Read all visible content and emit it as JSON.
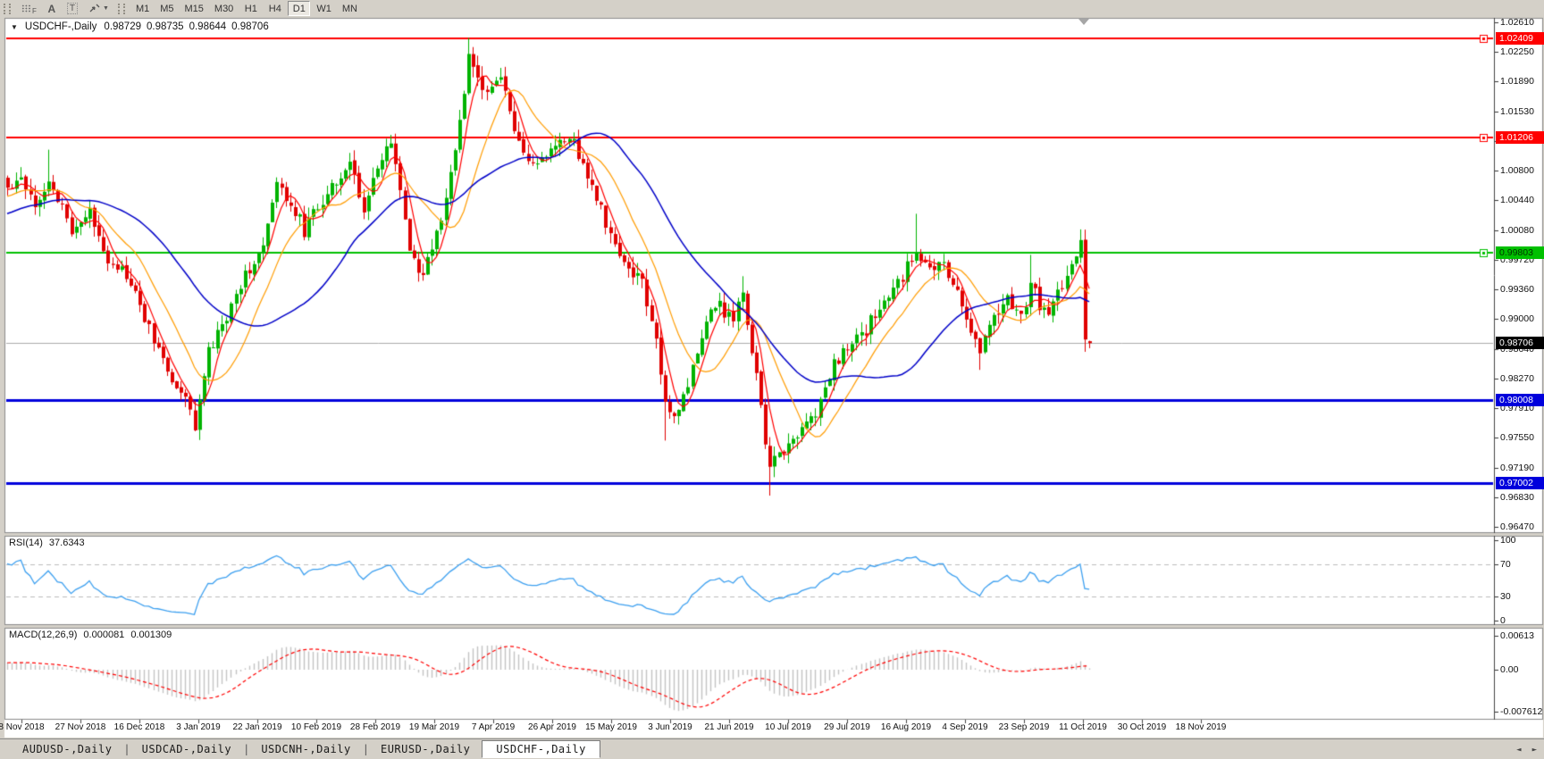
{
  "app": {
    "toolbar": {
      "grid_icon_label": "F",
      "font_icon_label": "A",
      "text_icon_label": "T",
      "timeframes": [
        "M1",
        "M5",
        "M15",
        "M30",
        "H1",
        "H4",
        "D1",
        "W1",
        "MN"
      ],
      "active_timeframe": "D1"
    },
    "tabs": {
      "items": [
        "AUDUSD-,Daily",
        "USDCAD-,Daily",
        "USDCNH-,Daily",
        "EURUSD-,Daily",
        "USDCHF-,Daily"
      ],
      "active_index": 4,
      "scroll_left_glyph": "◄",
      "scroll_right_glyph": "►"
    }
  },
  "chart_data": {
    "type": "candlestick",
    "symbol": "USDCHF-",
    "timeframe": "Daily",
    "title": "USDCHF-,Daily",
    "current_bar": {
      "open": "0.98729",
      "high": "0.98735",
      "low": "0.98644",
      "close": "0.98706"
    },
    "y_axis": {
      "top": 1.0261,
      "bottom": 0.9647,
      "ticks": [
        "1.02610",
        "1.02250",
        "1.01890",
        "1.01530",
        "1.01170",
        "1.00800",
        "1.00440",
        "1.00080",
        "0.99720",
        "0.99360",
        "0.99000",
        "0.98640",
        "0.98270",
        "0.97910",
        "0.97550",
        "0.97190",
        "0.96830",
        "0.96470"
      ]
    },
    "x_axis": {
      "dates": [
        "8 Nov 2018",
        "27 Nov 2018",
        "16 Dec 2018",
        "3 Jan 2019",
        "22 Jan 2019",
        "10 Feb 2019",
        "28 Feb 2019",
        "19 Mar 2019",
        "7 Apr 2019",
        "26 Apr 2019",
        "15 May 2019",
        "3 Jun 2019",
        "21 Jun 2019",
        "10 Jul 2019",
        "29 Jul 2019",
        "16 Aug 2019",
        "4 Sep 2019",
        "23 Sep 2019",
        "11 Oct 2019",
        "30 Oct 2019",
        "18 Nov 2019"
      ]
    },
    "horizontal_levels": [
      {
        "price": 1.02409,
        "label": "1.02409",
        "color": "#ff0000",
        "text_color": "#ffffff",
        "width": 2,
        "handle": true
      },
      {
        "price": 1.01206,
        "label": "1.01206",
        "color": "#ff0000",
        "text_color": "#ffffff",
        "width": 2,
        "handle": true
      },
      {
        "price": 0.99803,
        "label": "0.99803",
        "color": "#00c000",
        "text_color": "#003300",
        "width": 2,
        "handle": true
      },
      {
        "price": 0.98008,
        "label": "0.98008",
        "color": "#0000dc",
        "text_color": "#ffffff",
        "width": 3,
        "handle": false
      },
      {
        "price": 0.97002,
        "label": "0.97002",
        "color": "#0000dc",
        "text_color": "#ffffff",
        "width": 3,
        "handle": false
      }
    ],
    "current_price": {
      "value": 0.98706,
      "label": "0.98706",
      "badge_color": "#000000",
      "text_color": "#ffffff",
      "line_color": "#ababab"
    },
    "moving_averages": [
      {
        "name": "fast-ma",
        "period": 5,
        "color": "#ff0000"
      },
      {
        "name": "medium-ma",
        "period": 13,
        "color": "#ff9c00"
      },
      {
        "name": "slow-ma",
        "period": 34,
        "color": "#0000c8"
      }
    ],
    "colors": {
      "bull": "#00b300",
      "bear": "#e00000",
      "background": "#ffffff",
      "axis_text": "#111111",
      "macd_histogram": "#c4c4c4",
      "macd_signal": "#ff0000",
      "rsi_line": "#3da0f0",
      "level_dash": "#bdbdbd"
    },
    "series_anchors": [
      [
        0,
        1.0058
      ],
      [
        3,
        1.0075
      ],
      [
        6,
        1.0042
      ],
      [
        9,
        1.0068
      ],
      [
        12,
        1.0032
      ],
      [
        14,
        1.001
      ],
      [
        18,
        1.0028
      ],
      [
        22,
        0.9975
      ],
      [
        26,
        0.9952
      ],
      [
        30,
        0.9902
      ],
      [
        33,
        0.9862
      ],
      [
        36,
        0.9826
      ],
      [
        39,
        0.98
      ],
      [
        41,
        0.9772
      ],
      [
        44,
        0.9858
      ],
      [
        48,
        0.9902
      ],
      [
        52,
        0.9956
      ],
      [
        56,
        0.9986
      ],
      [
        59,
        1.0062
      ],
      [
        62,
        1.0042
      ],
      [
        65,
        1.0008
      ],
      [
        68,
        1.0036
      ],
      [
        72,
        1.0072
      ],
      [
        75,
        1.0088
      ],
      [
        78,
        1.0036
      ],
      [
        81,
        1.008
      ],
      [
        84,
        1.0114
      ],
      [
        86,
        1.0062
      ],
      [
        88,
        0.9978
      ],
      [
        91,
        0.9952
      ],
      [
        94,
        1.0002
      ],
      [
        97,
        1.0072
      ],
      [
        99,
        1.0142
      ],
      [
        101,
        1.0216
      ],
      [
        103,
        1.019
      ],
      [
        105,
        1.0172
      ],
      [
        107,
        1.0196
      ],
      [
        109,
        1.0176
      ],
      [
        112,
        1.0112
      ],
      [
        115,
        1.0084
      ],
      [
        118,
        1.0096
      ],
      [
        121,
        1.012
      ],
      [
        124,
        1.0112
      ],
      [
        127,
        1.0076
      ],
      [
        130,
        1.0032
      ],
      [
        133,
        0.9986
      ],
      [
        136,
        0.9962
      ],
      [
        139,
        0.9946
      ],
      [
        142,
        0.9872
      ],
      [
        144,
        0.9798
      ],
      [
        147,
        0.9786
      ],
      [
        150,
        0.9842
      ],
      [
        153,
        0.99
      ],
      [
        156,
        0.9916
      ],
      [
        159,
        0.9896
      ],
      [
        161,
        0.993
      ],
      [
        163,
        0.9862
      ],
      [
        165,
        0.9792
      ],
      [
        167,
        0.9716
      ],
      [
        169,
        0.9736
      ],
      [
        172,
        0.9752
      ],
      [
        175,
        0.9776
      ],
      [
        178,
        0.9796
      ],
      [
        181,
        0.9846
      ],
      [
        184,
        0.9866
      ],
      [
        187,
        0.9876
      ],
      [
        190,
        0.9906
      ],
      [
        193,
        0.9928
      ],
      [
        196,
        0.995
      ],
      [
        199,
        0.9988
      ],
      [
        202,
        0.9956
      ],
      [
        205,
        0.9968
      ],
      [
        208,
        0.993
      ],
      [
        211,
        0.989
      ],
      [
        213,
        0.9862
      ],
      [
        216,
        0.9906
      ],
      [
        219,
        0.9926
      ],
      [
        222,
        0.9902
      ],
      [
        224,
        0.9942
      ],
      [
        227,
        0.9906
      ],
      [
        230,
        0.9928
      ],
      [
        233,
        0.9968
      ],
      [
        235,
        0.9996
      ],
      [
        236,
        0.9875
      ],
      [
        237,
        0.98706
      ]
    ],
    "wick_spikes": [
      {
        "i": 9,
        "high": 1.0106
      },
      {
        "i": 41,
        "low": 0.9768
      },
      {
        "i": 84,
        "high": 1.0124
      },
      {
        "i": 101,
        "high": 1.0242
      },
      {
        "i": 121,
        "high": 1.0124
      },
      {
        "i": 144,
        "low": 0.9752
      },
      {
        "i": 161,
        "high": 0.9952
      },
      {
        "i": 167,
        "low": 0.9685
      },
      {
        "i": 199,
        "high": 1.0028
      },
      {
        "i": 213,
        "low": 0.9838
      },
      {
        "i": 224,
        "high": 0.9978
      },
      {
        "i": 235,
        "high": 1.0009
      },
      {
        "i": 236,
        "low": 0.986
      }
    ],
    "indicators": {
      "rsi": {
        "name": "RSI(14)",
        "value": "37.6343",
        "period": 14,
        "range": [
          0,
          100
        ],
        "levels": [
          70,
          30
        ],
        "ticks": [
          {
            "label": "100",
            "value": 100
          },
          {
            "label": "70",
            "value": 70
          },
          {
            "label": "30",
            "value": 30
          },
          {
            "label": "0",
            "value": 0
          }
        ]
      },
      "macd": {
        "name": "MACD(12,26,9)",
        "value_macd": "0.000081",
        "value_signal": "0.001309",
        "fast": 12,
        "slow": 26,
        "signal": 9,
        "ticks": [
          {
            "label": "0.00613",
            "value": 0.00613
          },
          {
            "label": "0.00",
            "value": 0
          },
          {
            "label": "-0.007612",
            "value": -0.007612
          }
        ]
      }
    }
  }
}
